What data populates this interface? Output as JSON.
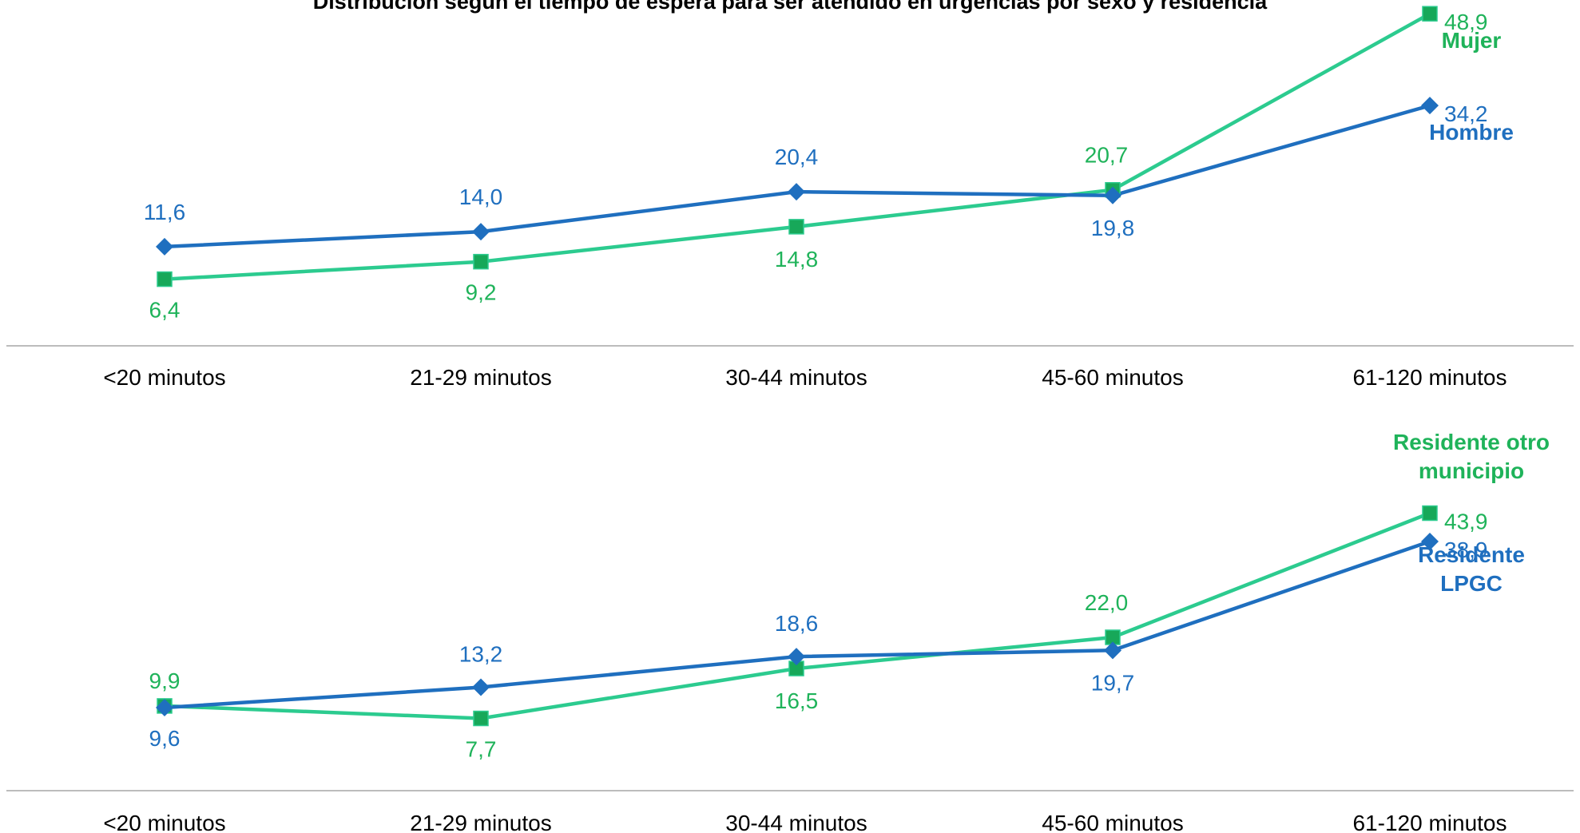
{
  "title": "Distribución según el tiempo de espera para ser atendido en urgencias por sexo y residencia",
  "colors": {
    "blue": "#1F6FBF",
    "green": "#2CCB8F",
    "green_marker": "#17A859",
    "green_text": "#1FB35A",
    "axis": "#A6A6A6"
  },
  "chart_data": [
    {
      "type": "line",
      "categories": [
        "<20 minutos",
        "21-29 minutos",
        "30-44 minutos",
        "45-60 minutos",
        "61-120 minutos"
      ],
      "series": [
        {
          "name": "Hombre",
          "marker": "diamond",
          "color": "#1F6FBF",
          "values": [
            11.6,
            14.0,
            20.4,
            19.8,
            34.2
          ],
          "labels": [
            "11,6",
            "14,0",
            "20,4",
            "19,8",
            "34,2"
          ]
        },
        {
          "name": "Mujer",
          "marker": "square",
          "color": "#2CCB8F",
          "values": [
            6.4,
            9.2,
            14.8,
            20.7,
            48.9
          ],
          "labels": [
            "6,4",
            "9,2",
            "14,8",
            "20,7",
            "48,9"
          ]
        }
      ]
    },
    {
      "type": "line",
      "categories": [
        "<20 minutos",
        "21-29 minutos",
        "30-44 minutos",
        "45-60 minutos",
        "61-120 minutos"
      ],
      "series": [
        {
          "name": "Residente LPGC",
          "name_lines": [
            "Residente",
            "LPGC"
          ],
          "marker": "diamond",
          "color": "#1F6FBF",
          "values": [
            9.6,
            13.2,
            18.6,
            19.7,
            38.9
          ],
          "labels": [
            "9,6",
            "13,2",
            "18,6",
            "19,7",
            "38,9"
          ]
        },
        {
          "name": "Residente otro municipio",
          "name_lines": [
            "Residente otro",
            "municipio"
          ],
          "marker": "square",
          "color": "#2CCB8F",
          "values": [
            9.9,
            7.7,
            16.5,
            22.0,
            43.9
          ],
          "labels": [
            "9,9",
            "7,7",
            "16,5",
            "22,0",
            "43,9"
          ]
        }
      ]
    }
  ]
}
